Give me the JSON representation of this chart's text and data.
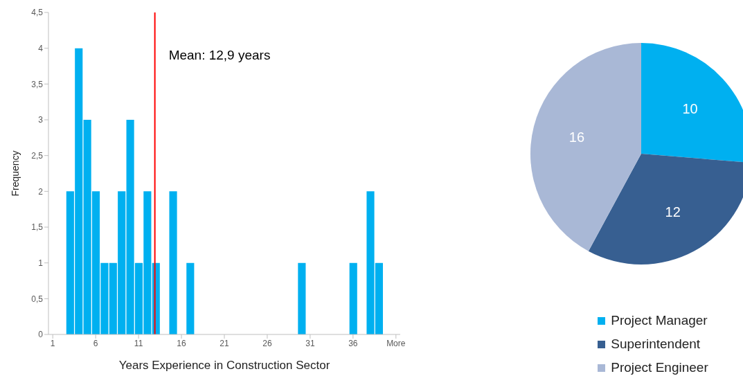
{
  "chart_data": [
    {
      "type": "bar",
      "xlabel": "Years Experience in Construction Sector",
      "ylabel": "Frequency",
      "color": "#00b0f0",
      "x": [
        1,
        2,
        3,
        4,
        5,
        6,
        7,
        8,
        9,
        10,
        11,
        12,
        13,
        14,
        15,
        16,
        17,
        18,
        19,
        20,
        21,
        22,
        23,
        24,
        25,
        26,
        27,
        28,
        29,
        30,
        31,
        32,
        33,
        34,
        35,
        36,
        37,
        38,
        39,
        40,
        41
      ],
      "values": [
        0,
        0,
        2,
        4,
        3,
        2,
        1,
        1,
        2,
        3,
        1,
        2,
        1,
        0,
        2,
        0,
        1,
        0,
        0,
        0,
        0,
        0,
        0,
        0,
        0,
        0,
        0,
        0,
        0,
        1,
        0,
        0,
        0,
        0,
        0,
        1,
        0,
        2,
        1,
        0,
        0
      ],
      "xlim": [
        0.5,
        41.5
      ],
      "xticks": [
        1,
        6,
        11,
        16,
        21,
        26,
        31,
        36,
        {
          "value": 41,
          "label": "More"
        }
      ],
      "ylim": [
        0,
        4.5
      ],
      "yticks": [
        0,
        {
          "value": 0.5,
          "label": "0,5"
        },
        1,
        {
          "value": 1.5,
          "label": "1,5"
        },
        2,
        {
          "value": 2.5,
          "label": "2,5"
        },
        3,
        {
          "value": 3.5,
          "label": "3,5"
        },
        4,
        {
          "value": 4.5,
          "label": "4,5"
        }
      ],
      "ref_lines": [
        {
          "axis": "x",
          "value": 12.9,
          "label": "Mean: 12,9 years",
          "color": "#ff0000"
        }
      ]
    },
    {
      "type": "pie",
      "categories": [
        "Project Manager",
        "Superintendent",
        "Project Engineer"
      ],
      "values": [
        10,
        12,
        16
      ],
      "colors": [
        "#00b0f0",
        "#375f91",
        "#a9b8d6"
      ],
      "data_labels": true,
      "legend": "bottom"
    }
  ]
}
